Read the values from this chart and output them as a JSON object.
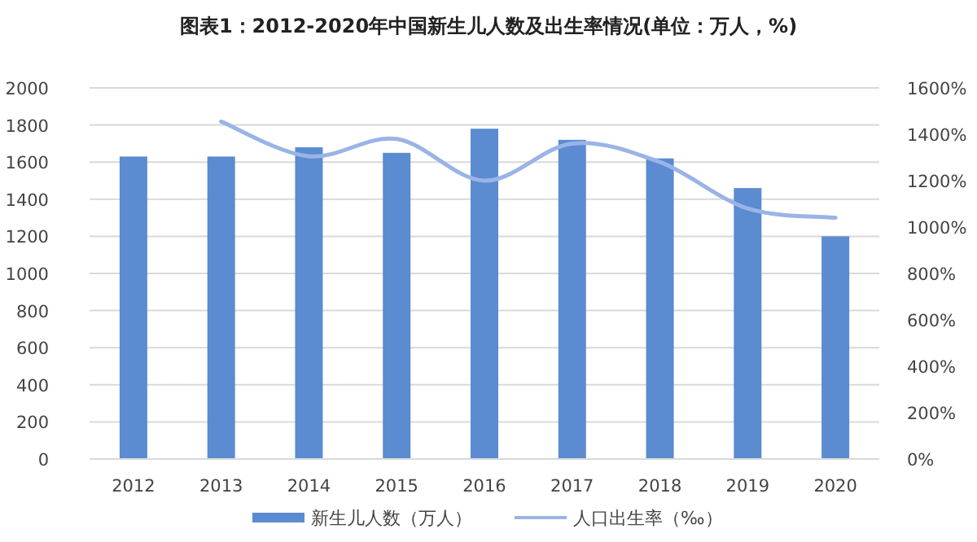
{
  "chart_data": {
    "type": "bar",
    "title": "图表1：2012-2020年中国新生儿人数及出生率情况(单位：万人，%)",
    "categories": [
      "2012",
      "2013",
      "2014",
      "2015",
      "2016",
      "2017",
      "2018",
      "2019",
      "2020"
    ],
    "series": [
      {
        "name": "新生儿人数（万人）",
        "color": "#5b8bd0",
        "values": [
          1630,
          1630,
          1680,
          1650,
          1780,
          1720,
          1620,
          1460,
          1200
        ]
      },
      {
        "name": "人口出生率（‰）",
        "type": "line",
        "axis": "y2",
        "color": "#9ab4e6",
        "values": [
          null,
          1455,
          1305,
          1380,
          1200,
          1360,
          1280,
          1080,
          1040
        ]
      }
    ],
    "ylim": [
      0,
      2000
    ],
    "yticks": [
      0,
      200,
      400,
      600,
      800,
      1000,
      1200,
      1400,
      1600,
      1800,
      2000
    ],
    "y2lim": [
      0,
      1600
    ],
    "y2ticks": [
      {
        "value": 0,
        "label": "0%"
      },
      {
        "value": 200,
        "label": "200%"
      },
      {
        "value": 400,
        "label": "400%"
      },
      {
        "value": 600,
        "label": "600%"
      },
      {
        "value": 800,
        "label": "800%"
      },
      {
        "value": 1000,
        "label": "1000%"
      },
      {
        "value": 1200,
        "label": "1200%"
      },
      {
        "value": 1400,
        "label": "1400%"
      },
      {
        "value": 1600,
        "label": "1600%"
      }
    ],
    "grid": "y",
    "legend": "bottom",
    "marker": "none"
  }
}
